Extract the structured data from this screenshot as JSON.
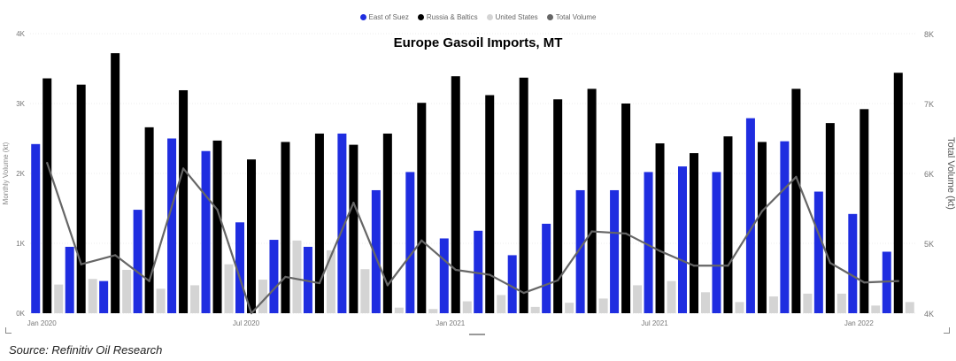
{
  "chart_data": {
    "type": "bar",
    "title": "Europe Gasoil Imports, MT",
    "source": "Source: Refinitiv Oil Research",
    "ylabel_left": "Monthly Volume (kt)",
    "ylabel_right": "Total Volume (kt)",
    "ylim_left": [
      0,
      4000
    ],
    "ylim_right": [
      4000,
      8000
    ],
    "y_ticks_left": [
      "0K",
      "1K",
      "2K",
      "3K",
      "4K"
    ],
    "y_ticks_right": [
      "4K",
      "5K",
      "6K",
      "7K",
      "8K"
    ],
    "x_tick_labels": [
      {
        "label": "Jan 2020",
        "index": 0
      },
      {
        "label": "Jul 2020",
        "index": 6
      },
      {
        "label": "Jan 2021",
        "index": 12
      },
      {
        "label": "Jul 2021",
        "index": 18
      },
      {
        "label": "Jan 2022",
        "index": 24
      }
    ],
    "categories": [
      "2020-01",
      "2020-02",
      "2020-03",
      "2020-04",
      "2020-05",
      "2020-06",
      "2020-07",
      "2020-08",
      "2020-09",
      "2020-10",
      "2020-11",
      "2020-12",
      "2021-01",
      "2021-02",
      "2021-03",
      "2021-04",
      "2021-05",
      "2021-06",
      "2021-07",
      "2021-08",
      "2021-09",
      "2021-10",
      "2021-11",
      "2021-12",
      "2022-01",
      "2022-02"
    ],
    "series": [
      {
        "name": "East of Suez",
        "color": "#1f2de0",
        "type": "bar",
        "values": [
          2420,
          950,
          460,
          1480,
          2500,
          2320,
          1300,
          1050,
          950,
          2570,
          1760,
          2020,
          1070,
          1180,
          830,
          1280,
          1760,
          1760,
          2020,
          2100,
          2020,
          2790,
          2460,
          1740,
          1420,
          880
        ]
      },
      {
        "name": "Russia & Baltics",
        "color": "#000000",
        "type": "bar",
        "values": [
          3360,
          3270,
          3720,
          2660,
          3190,
          2470,
          2200,
          2450,
          2570,
          2410,
          2570,
          3010,
          3390,
          3120,
          3370,
          3060,
          3210,
          3000,
          2430,
          2290,
          2530,
          2450,
          3210,
          2720,
          2920,
          3440
        ]
      },
      {
        "name": "United States",
        "color": "#d4d4d4",
        "type": "bar",
        "values": [
          410,
          490,
          620,
          350,
          400,
          700,
          480,
          1040,
          900,
          630,
          80,
          60,
          170,
          260,
          90,
          150,
          210,
          400,
          460,
          300,
          160,
          240,
          280,
          280,
          110,
          160
        ]
      },
      {
        "name": "Total Volume",
        "color": "#666666",
        "type": "line",
        "values": [
          6150,
          4700,
          4830,
          4460,
          6070,
          5480,
          4000,
          4520,
          4430,
          5580,
          4400,
          5040,
          4620,
          4550,
          4290,
          4470,
          5170,
          5140,
          4890,
          4680,
          4680,
          5460,
          5950,
          4720,
          4440,
          4460
        ]
      }
    ]
  }
}
